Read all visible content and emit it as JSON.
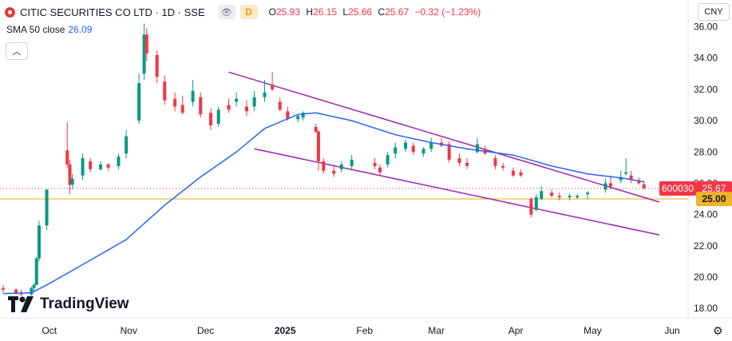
{
  "legend": {
    "title": "CITIC SECURITIES CO LTD · 1D · SSE",
    "badge": "D",
    "open_label": "O",
    "open": "25.93",
    "high_label": "H",
    "high": "26.15",
    "low_label": "L",
    "low": "25.66",
    "close_label": "C",
    "close": "25.67",
    "change": "−0.32 (−1.23%)"
  },
  "sma": {
    "label": "SMA 50 close",
    "value": "26.09"
  },
  "currency": "CNY",
  "branding": "TradingView",
  "price_tags": {
    "symbol": "600030",
    "last": "25.67",
    "level": "25.00"
  },
  "chart_data": {
    "type": "candlestick",
    "y_ticks": [
      "36.00",
      "34.00",
      "32.00",
      "30.00",
      "28.00",
      "26.00",
      "24.00",
      "22.00",
      "20.00",
      "18.00"
    ],
    "x_ticks": [
      "Oct",
      "Nov",
      "Dec",
      "2025",
      "Feb",
      "Mar",
      "Apr",
      "May",
      "Jun"
    ],
    "ylim": [
      17.4,
      37.2
    ],
    "horizontal_level": 25.0,
    "last_price": 25.67,
    "colors": {
      "up": "#089981",
      "down": "#f23645",
      "sma": "#2962ff",
      "channel": "#9c27b0",
      "level": "#f0b429"
    },
    "candles": [
      [
        "2024-09-13",
        19.3,
        19.5,
        19.0,
        19.2
      ],
      [
        "2024-09-18",
        19.2,
        19.3,
        18.9,
        19.0
      ],
      [
        "2024-09-20",
        19.0,
        19.2,
        18.8,
        18.9
      ],
      [
        "2024-09-24",
        18.9,
        19.4,
        18.8,
        19.3
      ],
      [
        "2024-09-25",
        19.3,
        19.6,
        19.1,
        19.5
      ],
      [
        "2024-09-26",
        19.5,
        21.3,
        19.5,
        21.2
      ],
      [
        "2024-09-27",
        21.2,
        23.6,
        21.0,
        23.3
      ],
      [
        "2024-09-30",
        23.3,
        25.6,
        23.0,
        25.6
      ],
      [
        "2024-10-08",
        28.1,
        29.9,
        27.0,
        27.2
      ],
      [
        "2024-10-09",
        27.2,
        27.5,
        25.3,
        25.9
      ],
      [
        "2024-10-10",
        25.9,
        26.6,
        25.6,
        26.3
      ],
      [
        "2024-10-14",
        26.5,
        27.9,
        26.2,
        27.6
      ],
      [
        "2024-10-17",
        27.4,
        27.6,
        26.7,
        26.9
      ],
      [
        "2024-10-21",
        26.9,
        27.4,
        26.8,
        27.2
      ],
      [
        "2024-10-24",
        27.2,
        27.3,
        26.8,
        27.0
      ],
      [
        "2024-10-28",
        27.1,
        27.9,
        26.9,
        27.7
      ],
      [
        "2024-10-31",
        27.9,
        29.4,
        27.6,
        29.0
      ],
      [
        "2024-11-05",
        30.0,
        33.0,
        29.8,
        32.4
      ],
      [
        "2024-11-07",
        33.0,
        36.2,
        32.6,
        35.5
      ],
      [
        "2024-11-08",
        35.5,
        35.9,
        33.8,
        34.3
      ],
      [
        "2024-11-12",
        34.2,
        34.5,
        32.4,
        32.8
      ],
      [
        "2024-11-15",
        32.5,
        32.9,
        31.0,
        31.3
      ],
      [
        "2024-11-19",
        31.4,
        31.8,
        30.6,
        30.9
      ],
      [
        "2024-11-22",
        31.0,
        31.6,
        30.4,
        30.5
      ],
      [
        "2024-11-26",
        31.2,
        32.6,
        30.9,
        31.9
      ],
      [
        "2024-11-29",
        31.5,
        31.8,
        30.2,
        30.4
      ],
      [
        "2024-12-03",
        30.5,
        30.8,
        29.4,
        29.7
      ],
      [
        "2024-12-06",
        29.8,
        30.9,
        29.6,
        30.7
      ],
      [
        "2024-12-10",
        31.0,
        31.4,
        30.5,
        30.7
      ],
      [
        "2024-12-13",
        31.2,
        31.8,
        30.9,
        31.4
      ],
      [
        "2024-12-17",
        30.9,
        31.3,
        30.3,
        30.6
      ],
      [
        "2024-12-20",
        30.9,
        31.9,
        30.6,
        31.5
      ],
      [
        "2024-12-24",
        31.5,
        32.6,
        31.2,
        31.8
      ],
      [
        "2024-12-27",
        32.3,
        33.1,
        31.9,
        32.0
      ],
      [
        "2024-12-30",
        31.2,
        31.5,
        30.6,
        30.7
      ],
      [
        "2025-01-02",
        30.6,
        30.9,
        30.0,
        30.1
      ],
      [
        "2025-01-06",
        30.1,
        30.4,
        29.9,
        30.3
      ],
      [
        "2025-01-08",
        30.2,
        30.6,
        30.0,
        30.5
      ],
      [
        "2025-01-13",
        29.6,
        29.8,
        29.2,
        29.3
      ],
      [
        "2025-01-14",
        29.3,
        29.4,
        26.8,
        27.4
      ],
      [
        "2025-01-16",
        27.4,
        27.6,
        26.6,
        26.8
      ],
      [
        "2025-01-20",
        26.8,
        27.1,
        26.4,
        26.6
      ],
      [
        "2025-01-23",
        26.9,
        27.4,
        26.7,
        27.2
      ],
      [
        "2025-01-27",
        27.1,
        27.8,
        26.8,
        27.5
      ],
      [
        "2025-02-05",
        27.3,
        27.6,
        26.9,
        27.1
      ],
      [
        "2025-02-07",
        27.0,
        27.2,
        26.5,
        26.7
      ],
      [
        "2025-02-10",
        27.2,
        28.0,
        27.0,
        27.8
      ],
      [
        "2025-02-13",
        27.9,
        28.6,
        27.6,
        28.3
      ],
      [
        "2025-02-17",
        28.2,
        28.8,
        28.0,
        28.6
      ],
      [
        "2025-02-20",
        28.4,
        28.6,
        27.8,
        28.0
      ],
      [
        "2025-02-24",
        27.9,
        28.3,
        27.7,
        28.2
      ],
      [
        "2025-02-27",
        28.2,
        28.9,
        28.0,
        28.6
      ],
      [
        "2025-03-03",
        28.6,
        28.9,
        28.3,
        28.4
      ],
      [
        "2025-03-06",
        28.5,
        28.7,
        27.3,
        27.5
      ],
      [
        "2025-03-10",
        27.6,
        27.9,
        27.1,
        27.3
      ],
      [
        "2025-03-13",
        27.3,
        27.6,
        26.9,
        27.1
      ],
      [
        "2025-03-17",
        28.0,
        28.9,
        27.9,
        28.5
      ],
      [
        "2025-03-20",
        28.2,
        28.4,
        27.8,
        27.9
      ],
      [
        "2025-03-24",
        27.6,
        27.8,
        26.9,
        27.1
      ],
      [
        "2025-03-27",
        27.1,
        27.3,
        26.8,
        27.0
      ],
      [
        "2025-03-31",
        26.8,
        27.0,
        26.4,
        26.5
      ],
      [
        "2025-04-03",
        26.7,
        26.9,
        26.4,
        26.5
      ],
      [
        "2025-04-07",
        25.0,
        25.1,
        23.8,
        24.0
      ],
      [
        "2025-04-09",
        24.3,
        25.3,
        24.2,
        25.1
      ],
      [
        "2025-04-11",
        25.0,
        25.8,
        24.9,
        25.5
      ],
      [
        "2025-04-15",
        25.4,
        25.6,
        25.1,
        25.2
      ],
      [
        "2025-04-18",
        25.2,
        25.4,
        24.9,
        25.1
      ],
      [
        "2025-04-22",
        25.1,
        25.3,
        24.9,
        25.2
      ],
      [
        "2025-04-25",
        25.1,
        25.3,
        25.0,
        25.2
      ],
      [
        "2025-04-29",
        25.3,
        25.5,
        25.0,
        25.4
      ],
      [
        "2025-05-06",
        25.6,
        26.3,
        25.4,
        26.0
      ],
      [
        "2025-05-08",
        26.0,
        26.5,
        25.6,
        25.8
      ],
      [
        "2025-05-12",
        26.2,
        26.8,
        26.0,
        26.4
      ],
      [
        "2025-05-14",
        26.6,
        27.6,
        26.5,
        26.7
      ],
      [
        "2025-05-16",
        26.5,
        26.8,
        26.0,
        26.2
      ],
      [
        "2025-05-19",
        26.2,
        26.4,
        25.9,
        26.0
      ],
      [
        "2025-05-21",
        25.93,
        26.15,
        25.66,
        25.67
      ]
    ],
    "sma50": [
      [
        "2024-09-13",
        18.95
      ],
      [
        "2024-09-24",
        19.0
      ],
      [
        "2024-09-30",
        19.5
      ],
      [
        "2024-10-14",
        20.8
      ],
      [
        "2024-10-31",
        22.4
      ],
      [
        "2024-11-15",
        24.6
      ],
      [
        "2024-11-29",
        26.4
      ],
      [
        "2024-12-13",
        28.0
      ],
      [
        "2024-12-24",
        29.5
      ],
      [
        "2025-01-06",
        30.4
      ],
      [
        "2025-01-13",
        30.5
      ],
      [
        "2025-01-27",
        30.0
      ],
      [
        "2025-02-13",
        29.1
      ],
      [
        "2025-02-27",
        28.6
      ],
      [
        "2025-03-13",
        28.2
      ],
      [
        "2025-03-31",
        27.8
      ],
      [
        "2025-04-15",
        27.1
      ],
      [
        "2025-04-29",
        26.6
      ],
      [
        "2025-05-14",
        26.3
      ],
      [
        "2025-05-21",
        26.09
      ]
    ],
    "channel_upper": [
      [
        "2024-12-10",
        33.1
      ],
      [
        "2025-05-27",
        24.8
      ]
    ],
    "channel_lower": [
      [
        "2024-12-20",
        28.2
      ],
      [
        "2025-05-27",
        22.7
      ]
    ]
  }
}
